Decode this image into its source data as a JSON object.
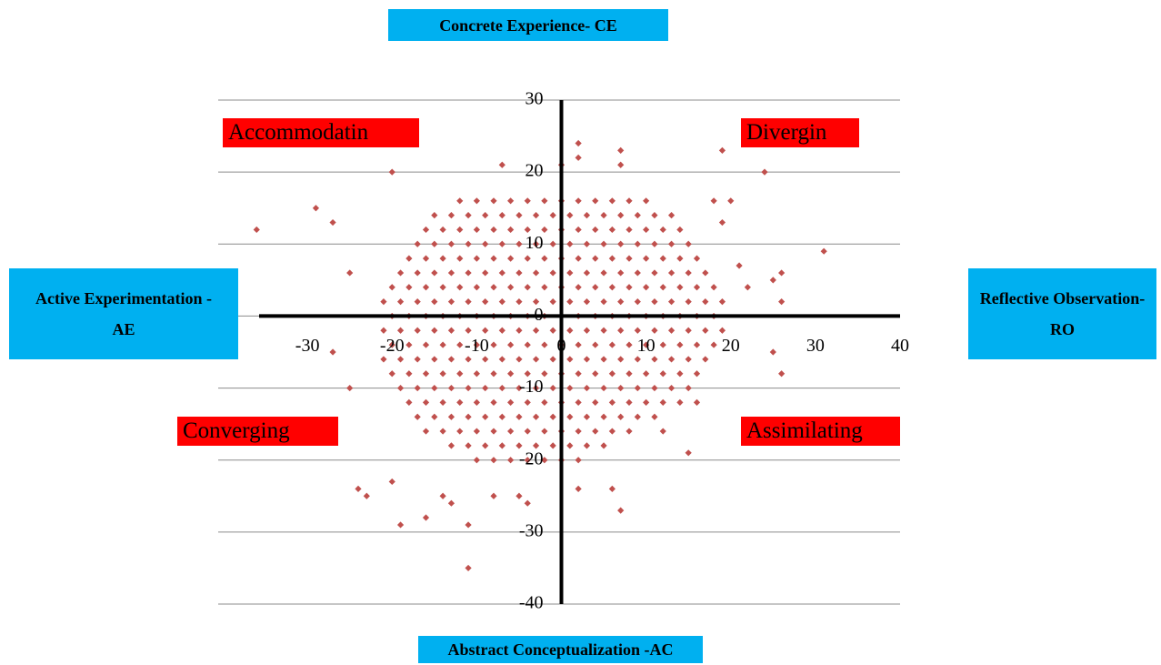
{
  "chart_data": {
    "type": "scatter",
    "axis_labels": {
      "top": "Concrete Experience- CE",
      "left": "Active Experimentation -AE",
      "right": "Reflective Observation- RO",
      "bottom": "Abstract Conceptualization -AC"
    },
    "quadrant_labels": [
      "Accommodatin",
      "Divergin",
      "Converging",
      "Assimilating"
    ],
    "color": "#c0504d",
    "xlim": [
      -40,
      40
    ],
    "ylim": [
      -40,
      30
    ],
    "xticks": [
      -30,
      -20,
      -10,
      0,
      10,
      20,
      30,
      40
    ],
    "yticks": [
      -40,
      -30,
      -20,
      -10,
      0,
      10,
      20,
      30
    ],
    "grid": true,
    "x": [
      -12,
      -10,
      -8,
      -6,
      -4,
      -2,
      0,
      2,
      4,
      6,
      8,
      10,
      -15,
      -13,
      -11,
      -9,
      -7,
      -5,
      -3,
      -1,
      1,
      3,
      5,
      7,
      9,
      11,
      13,
      -16,
      -14,
      -12,
      -10,
      -8,
      -6,
      -4,
      -2,
      0,
      2,
      4,
      6,
      8,
      10,
      12,
      14,
      -17,
      -15,
      -13,
      -11,
      -9,
      -7,
      -5,
      -3,
      -1,
      1,
      3,
      5,
      7,
      9,
      11,
      13,
      15,
      -18,
      -16,
      -14,
      -12,
      -10,
      -8,
      -6,
      -4,
      -2,
      0,
      2,
      4,
      6,
      8,
      10,
      12,
      14,
      16,
      -19,
      -17,
      -15,
      -13,
      -11,
      -9,
      -7,
      -5,
      -3,
      -1,
      1,
      3,
      5,
      7,
      9,
      11,
      13,
      15,
      17,
      -20,
      -18,
      -16,
      -14,
      -12,
      -10,
      -8,
      -6,
      -4,
      -2,
      0,
      2,
      4,
      6,
      8,
      10,
      12,
      14,
      16,
      18,
      -21,
      -19,
      -17,
      -15,
      -13,
      -11,
      -9,
      -7,
      -5,
      -3,
      -1,
      1,
      3,
      5,
      7,
      9,
      11,
      13,
      15,
      17,
      19,
      -20,
      -18,
      -16,
      -14,
      -12,
      -10,
      -8,
      -6,
      -4,
      -2,
      0,
      2,
      4,
      6,
      8,
      10,
      12,
      14,
      16,
      18,
      -21,
      -19,
      -17,
      -15,
      -13,
      -11,
      -9,
      -7,
      -5,
      -3,
      -1,
      1,
      3,
      5,
      7,
      9,
      11,
      13,
      15,
      17,
      19,
      -20,
      -18,
      -16,
      -14,
      -12,
      -10,
      -8,
      -6,
      -4,
      -2,
      0,
      2,
      4,
      6,
      8,
      10,
      12,
      14,
      16,
      18,
      -21,
      -19,
      -17,
      -15,
      -13,
      -11,
      -9,
      -7,
      -5,
      -3,
      -1,
      1,
      3,
      5,
      7,
      9,
      11,
      13,
      15,
      17,
      -20,
      -18,
      -16,
      -14,
      -12,
      -10,
      -8,
      -6,
      -4,
      -2,
      0,
      2,
      4,
      6,
      8,
      10,
      12,
      14,
      16,
      -19,
      -17,
      -15,
      -13,
      -11,
      -9,
      -7,
      -5,
      -3,
      -1,
      1,
      3,
      5,
      7,
      9,
      11,
      13,
      15,
      -18,
      -16,
      -14,
      -12,
      -10,
      -8,
      -6,
      -4,
      -2,
      0,
      2,
      4,
      6,
      8,
      10,
      12,
      14,
      -17,
      -15,
      -13,
      -11,
      -9,
      -7,
      -5,
      -3,
      -1,
      1,
      3,
      5,
      7,
      9,
      11,
      -16,
      -14,
      -12,
      -10,
      -8,
      -6,
      -4,
      -2,
      0,
      2,
      4,
      6,
      8,
      -13,
      -11,
      -9,
      -7,
      -5,
      -3,
      -1,
      1,
      3,
      5,
      -10,
      -8,
      -6,
      -4,
      -2,
      0,
      2,
      -36,
      -29,
      -27,
      -25,
      -20,
      -7,
      2,
      2,
      0,
      7,
      7,
      19,
      24,
      31,
      -11,
      -19,
      -11,
      -16,
      -24,
      -23,
      -20,
      7,
      6,
      2,
      -4,
      -27,
      -25,
      25,
      26,
      26,
      26,
      25,
      22,
      21,
      20,
      18,
      19,
      15,
      16,
      12,
      -14,
      -13,
      -8,
      -5
    ],
    "values": [
      16,
      16,
      16,
      16,
      16,
      16,
      16,
      16,
      16,
      16,
      16,
      16,
      14,
      14,
      14,
      14,
      14,
      14,
      14,
      14,
      14,
      14,
      14,
      14,
      14,
      14,
      14,
      12,
      12,
      12,
      12,
      12,
      12,
      12,
      12,
      12,
      12,
      12,
      12,
      12,
      12,
      12,
      12,
      10,
      10,
      10,
      10,
      10,
      10,
      10,
      10,
      10,
      10,
      10,
      10,
      10,
      10,
      10,
      10,
      10,
      8,
      8,
      8,
      8,
      8,
      8,
      8,
      8,
      8,
      8,
      8,
      8,
      8,
      8,
      8,
      8,
      8,
      8,
      6,
      6,
      6,
      6,
      6,
      6,
      6,
      6,
      6,
      6,
      6,
      6,
      6,
      6,
      6,
      6,
      6,
      6,
      6,
      4,
      4,
      4,
      4,
      4,
      4,
      4,
      4,
      4,
      4,
      4,
      4,
      4,
      4,
      4,
      4,
      4,
      4,
      4,
      4,
      2,
      2,
      2,
      2,
      2,
      2,
      2,
      2,
      2,
      2,
      2,
      2,
      2,
      2,
      2,
      2,
      2,
      2,
      2,
      2,
      2,
      0,
      0,
      0,
      0,
      0,
      0,
      0,
      0,
      0,
      0,
      0,
      0,
      0,
      0,
      0,
      0,
      0,
      0,
      0,
      0,
      -2,
      -2,
      -2,
      -2,
      -2,
      -2,
      -2,
      -2,
      -2,
      -2,
      -2,
      -2,
      -2,
      -2,
      -2,
      -2,
      -2,
      -2,
      -2,
      -2,
      -2,
      -4,
      -4,
      -4,
      -4,
      -4,
      -4,
      -4,
      -4,
      -4,
      -4,
      -4,
      -4,
      -4,
      -4,
      -4,
      -4,
      -4,
      -4,
      -4,
      -4,
      -6,
      -6,
      -6,
      -6,
      -6,
      -6,
      -6,
      -6,
      -6,
      -6,
      -6,
      -6,
      -6,
      -6,
      -6,
      -6,
      -6,
      -6,
      -6,
      -6,
      -8,
      -8,
      -8,
      -8,
      -8,
      -8,
      -8,
      -8,
      -8,
      -8,
      -8,
      -8,
      -8,
      -8,
      -8,
      -8,
      -8,
      -8,
      -8,
      -10,
      -10,
      -10,
      -10,
      -10,
      -10,
      -10,
      -10,
      -10,
      -10,
      -10,
      -10,
      -10,
      -10,
      -10,
      -10,
      -10,
      -10,
      -12,
      -12,
      -12,
      -12,
      -12,
      -12,
      -12,
      -12,
      -12,
      -12,
      -12,
      -12,
      -12,
      -12,
      -12,
      -12,
      -12,
      -14,
      -14,
      -14,
      -14,
      -14,
      -14,
      -14,
      -14,
      -14,
      -14,
      -14,
      -14,
      -14,
      -14,
      -14,
      -16,
      -16,
      -16,
      -16,
      -16,
      -16,
      -16,
      -16,
      -16,
      -16,
      -16,
      -16,
      -16,
      -18,
      -18,
      -18,
      -18,
      -18,
      -18,
      -18,
      -18,
      -18,
      -18,
      -20,
      -20,
      -20,
      -20,
      -20,
      -20,
      -20,
      12,
      15,
      13,
      6,
      20,
      21,
      24,
      22,
      21,
      23,
      21,
      23,
      20,
      9,
      -35,
      -29,
      -29,
      -28,
      -24,
      -25,
      -23,
      -27,
      -24,
      -24,
      -26,
      -5,
      -10,
      -5,
      -8,
      2,
      6,
      5,
      4,
      7,
      16,
      16,
      13,
      -19,
      -12,
      -16,
      -25,
      -26,
      -25,
      -25
    ]
  }
}
